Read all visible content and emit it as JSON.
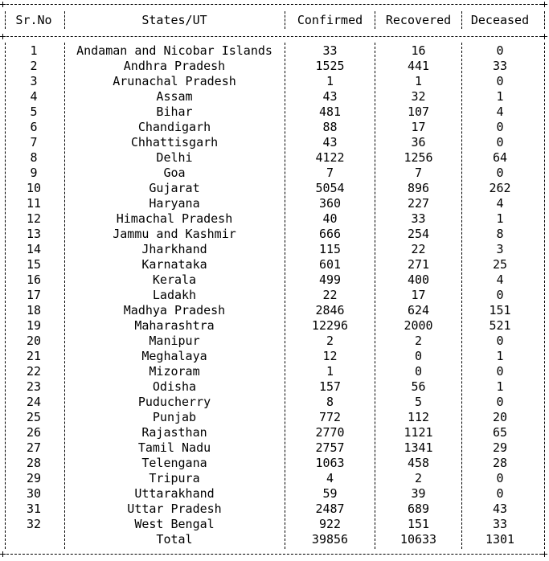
{
  "table": {
    "headers": [
      "Sr.No",
      "States/UT",
      "Confirmed",
      "Recovered",
      "Deceased"
    ],
    "rows": [
      [
        "1",
        "Andaman and Nicobar Islands",
        "33",
        "16",
        "0"
      ],
      [
        "2",
        "Andhra Pradesh",
        "1525",
        "441",
        "33"
      ],
      [
        "3",
        "Arunachal Pradesh",
        "1",
        "1",
        "0"
      ],
      [
        "4",
        "Assam",
        "43",
        "32",
        "1"
      ],
      [
        "5",
        "Bihar",
        "481",
        "107",
        "4"
      ],
      [
        "6",
        "Chandigarh",
        "88",
        "17",
        "0"
      ],
      [
        "7",
        "Chhattisgarh",
        "43",
        "36",
        "0"
      ],
      [
        "8",
        "Delhi",
        "4122",
        "1256",
        "64"
      ],
      [
        "9",
        "Goa",
        "7",
        "7",
        "0"
      ],
      [
        "10",
        "Gujarat",
        "5054",
        "896",
        "262"
      ],
      [
        "11",
        "Haryana",
        "360",
        "227",
        "4"
      ],
      [
        "12",
        "Himachal Pradesh",
        "40",
        "33",
        "1"
      ],
      [
        "13",
        "Jammu and Kashmir",
        "666",
        "254",
        "8"
      ],
      [
        "14",
        "Jharkhand",
        "115",
        "22",
        "3"
      ],
      [
        "15",
        "Karnataka",
        "601",
        "271",
        "25"
      ],
      [
        "16",
        "Kerala",
        "499",
        "400",
        "4"
      ],
      [
        "17",
        "Ladakh",
        "22",
        "17",
        "0"
      ],
      [
        "18",
        "Madhya Pradesh",
        "2846",
        "624",
        "151"
      ],
      [
        "19",
        "Maharashtra",
        "12296",
        "2000",
        "521"
      ],
      [
        "20",
        "Manipur",
        "2",
        "2",
        "0"
      ],
      [
        "21",
        "Meghalaya",
        "12",
        "0",
        "1"
      ],
      [
        "22",
        "Mizoram",
        "1",
        "0",
        "0"
      ],
      [
        "23",
        "Odisha",
        "157",
        "56",
        "1"
      ],
      [
        "24",
        "Puducherry",
        "8",
        "5",
        "0"
      ],
      [
        "25",
        "Punjab",
        "772",
        "112",
        "20"
      ],
      [
        "26",
        "Rajasthan",
        "2770",
        "1121",
        "65"
      ],
      [
        "27",
        "Tamil Nadu",
        "2757",
        "1341",
        "29"
      ],
      [
        "28",
        "Telengana",
        "1063",
        "458",
        "28"
      ],
      [
        "29",
        "Tripura",
        "4",
        "2",
        "0"
      ],
      [
        "30",
        "Uttarakhand",
        "59",
        "39",
        "0"
      ],
      [
        "31",
        "Uttar Pradesh",
        "2487",
        "689",
        "43"
      ],
      [
        "32",
        "West Bengal",
        "922",
        "151",
        "33"
      ],
      [
        "",
        "Total",
        "39856",
        "10633",
        "1301"
      ]
    ]
  }
}
